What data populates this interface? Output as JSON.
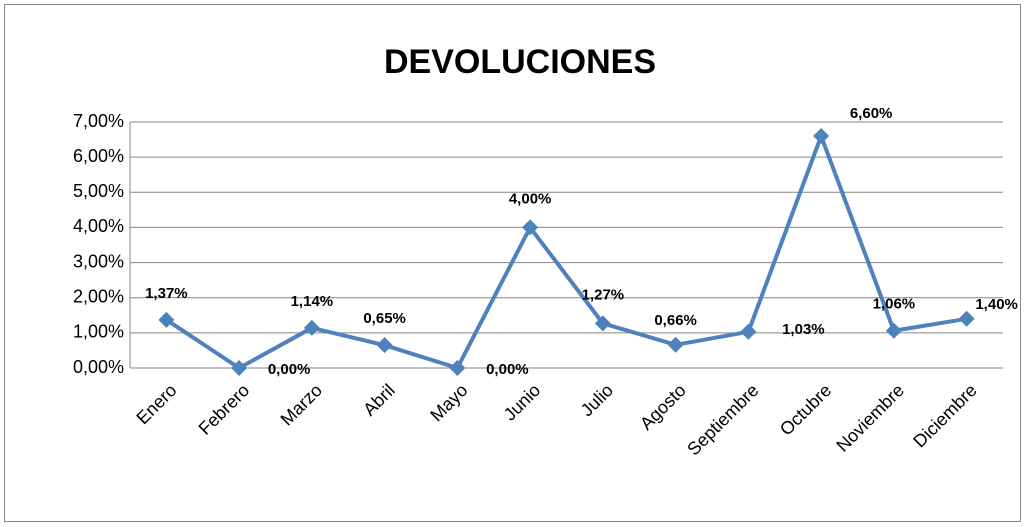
{
  "chart_data": {
    "type": "line",
    "title": "DEVOLUCIONES",
    "categories": [
      "Enero",
      "Febrero",
      "Marzo",
      "Abril",
      "Mayo",
      "Junio",
      "Julio",
      "Agosto",
      "Septiembre",
      "Octubre",
      "Noviembre",
      "Diciembre"
    ],
    "values": [
      1.37,
      0,
      1.14,
      0.65,
      0,
      4.0,
      1.27,
      0.66,
      1.03,
      6.6,
      1.06,
      1.4
    ],
    "value_labels": [
      "1,37%",
      "0,00%",
      "1,14%",
      "0,65%",
      "0,00%",
      "4,00%",
      "1,27%",
      "0,66%",
      "1,03%",
      "6,60%",
      "1,06%",
      "1,40%"
    ],
    "color": "#4f81bd",
    "ylim": [
      0,
      7
    ],
    "yticks": [
      {
        "value": 0,
        "label": "0,00%"
      },
      {
        "value": 1,
        "label": "1,00%"
      },
      {
        "value": 2,
        "label": "2,00%"
      },
      {
        "value": 3,
        "label": "3,00%"
      },
      {
        "value": 4,
        "label": "4,00%"
      },
      {
        "value": 5,
        "label": "5,00%"
      },
      {
        "value": 6,
        "label": "6,00%"
      },
      {
        "value": 7,
        "label": "7,00%"
      }
    ],
    "grid": true
  }
}
